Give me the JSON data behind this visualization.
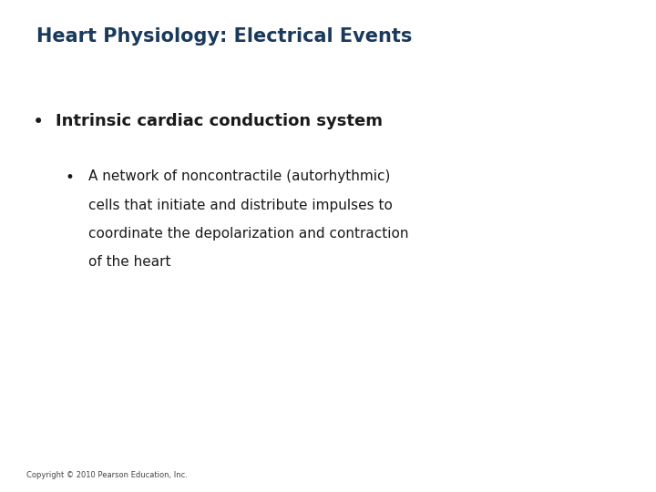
{
  "title": "Heart Physiology: Electrical Events",
  "title_color": "#1a3a5c",
  "title_fontsize": 15,
  "title_bold": true,
  "bullet1_text": "Intrinsic cardiac conduction system",
  "bullet1_color": "#1a1a1a",
  "bullet1_fontsize": 13,
  "bullet1_bold": true,
  "bullet2_lines": [
    "A network of noncontractile (autorhythmic)",
    "cells that initiate and distribute impulses to",
    "coordinate the depolarization and contraction",
    "of the heart"
  ],
  "bullet2_color": "#1a1a1a",
  "bullet2_fontsize": 11,
  "bullet2_bold": false,
  "copyright_text": "Copyright © 2010 Pearson Education, Inc.",
  "copyright_fontsize": 6,
  "copyright_color": "#444444",
  "background_color": "#ffffff"
}
